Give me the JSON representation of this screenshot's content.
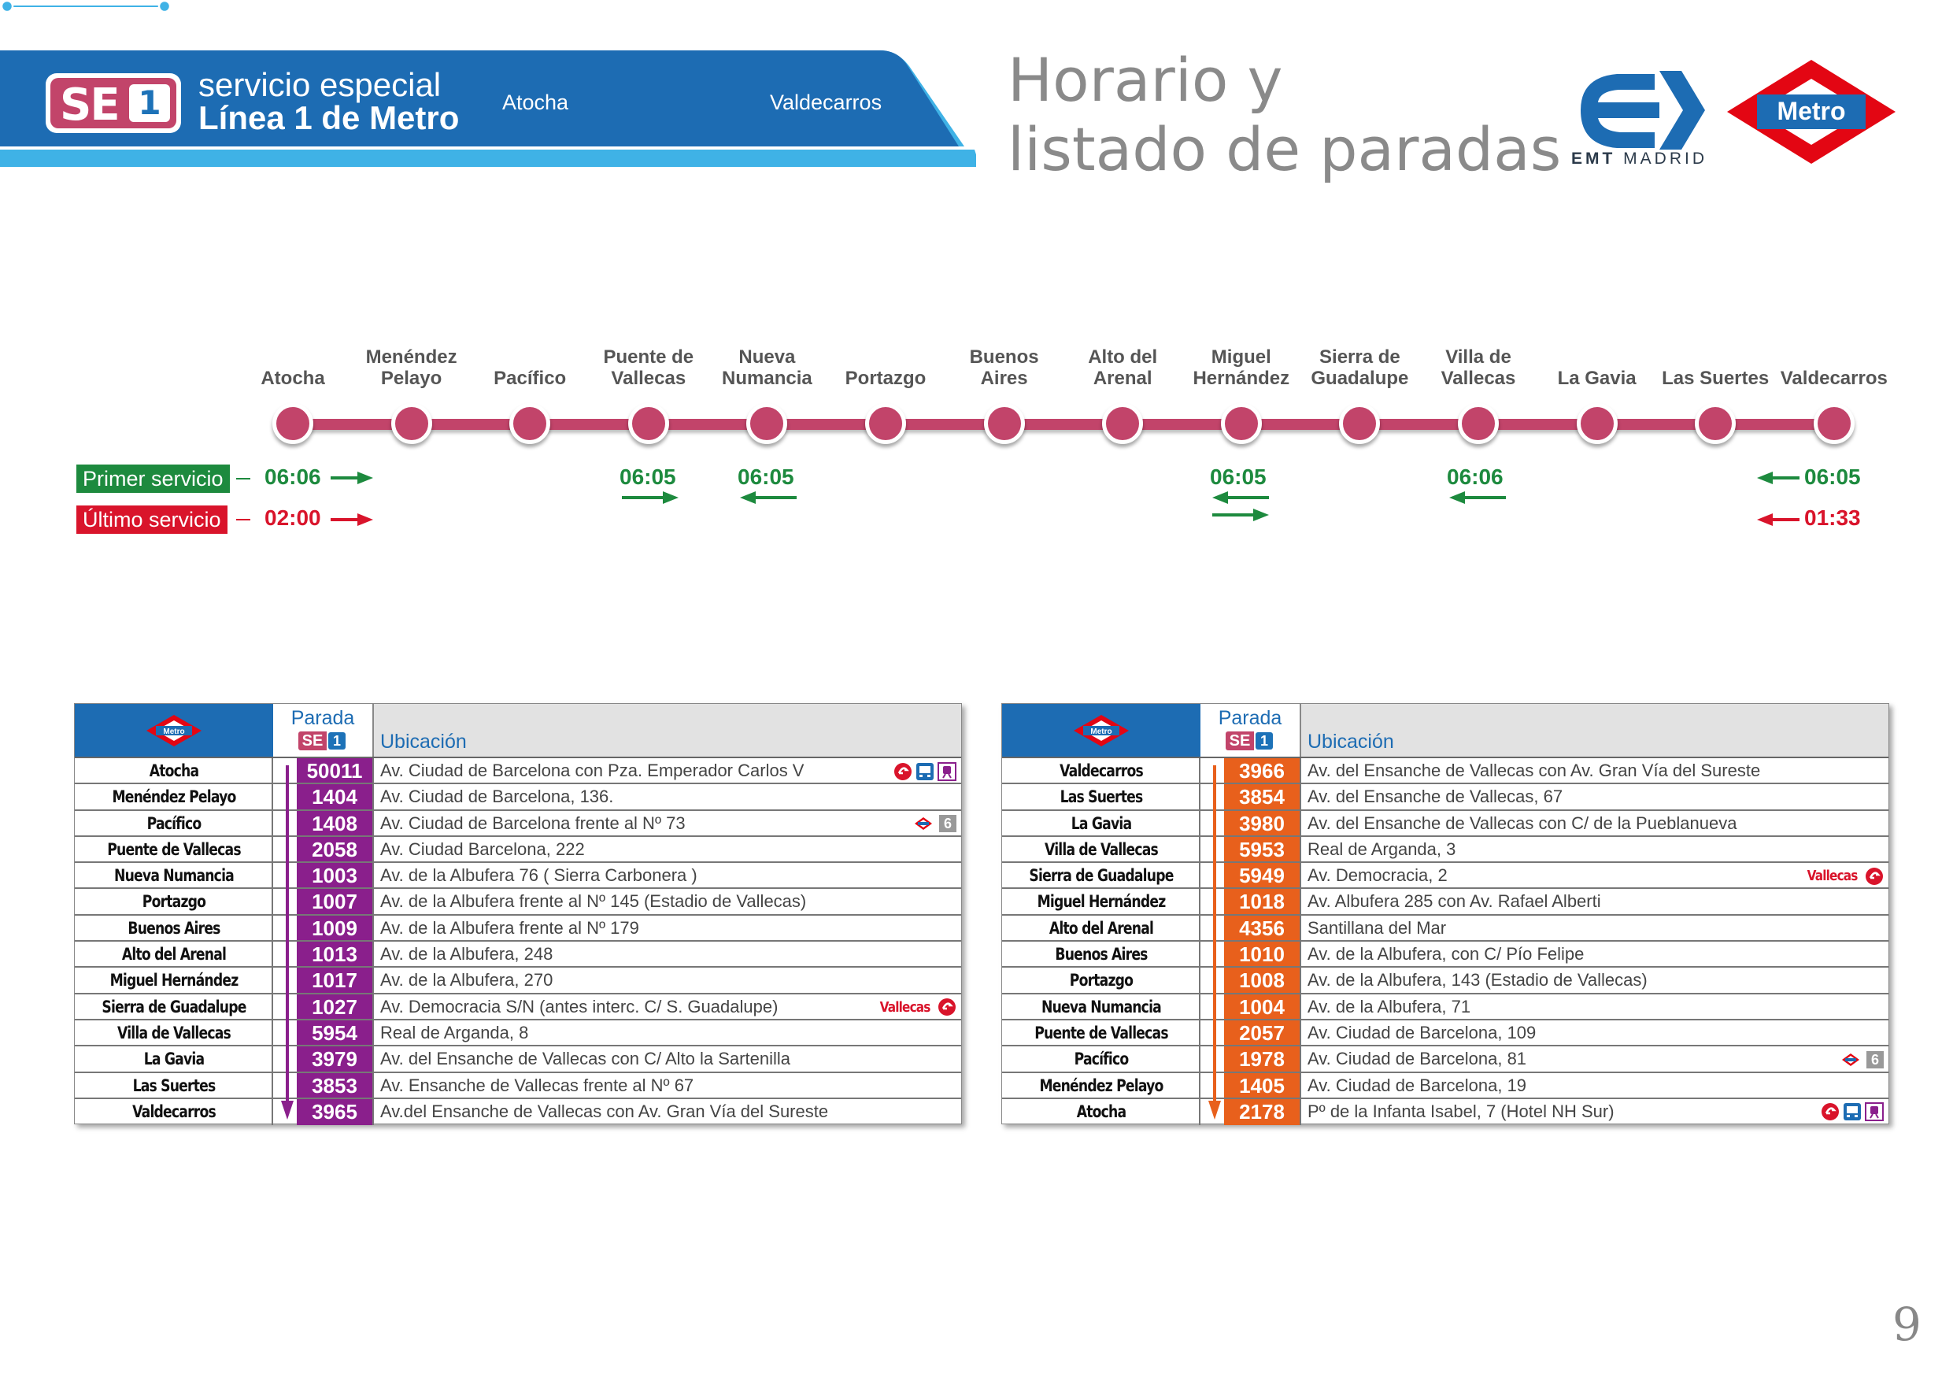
{
  "header": {
    "badge_se": "SE",
    "badge_num": "1",
    "line1": "servicio especial",
    "line2": "Línea 1 de Metro",
    "route_from": "Atocha",
    "route_to": "Valdecarros",
    "title_line1": "Horario y",
    "title_line2": "listado de paradas",
    "emt_bold": "EMT",
    "emt_rest": "MADRID",
    "metro_logo_text": "Metro",
    "colors": {
      "banner_blue": "#1d6cb3",
      "banner_light": "#3fb2e6",
      "line_pink": "#c2446a"
    }
  },
  "diagram": {
    "stops": [
      {
        "l1": "",
        "l2": "Atocha"
      },
      {
        "l1": "Menéndez",
        "l2": "Pelayo"
      },
      {
        "l1": "",
        "l2": "Pacífico"
      },
      {
        "l1": "Puente de",
        "l2": "Vallecas"
      },
      {
        "l1": "Nueva",
        "l2": "Numancia"
      },
      {
        "l1": "",
        "l2": "Portazgo"
      },
      {
        "l1": "Buenos",
        "l2": "Aires"
      },
      {
        "l1": "Alto del",
        "l2": "Arenal"
      },
      {
        "l1": "Miguel",
        "l2": "Hernández"
      },
      {
        "l1": "Sierra de",
        "l2": "Guadalupe"
      },
      {
        "l1": "Villa de",
        "l2": "Vallecas"
      },
      {
        "l1": "",
        "l2": "La Gavia"
      },
      {
        "l1": "",
        "l2": "Las Suertes"
      },
      {
        "l1": "",
        "l2": "Valdecarros"
      }
    ],
    "first_label": "Primer servicio",
    "last_label": "Último servicio",
    "times": {
      "atocha_first": "06:06",
      "atocha_last": "02:00",
      "puente_first": "06:05",
      "nueva_first": "06:05",
      "miguel_first": "06:05",
      "villa_first": "06:06",
      "valdecarros_first": "06:05",
      "valdecarros_last": "01:33"
    },
    "colors": {
      "first": "#1d8a3e",
      "last": "#d9142b"
    }
  },
  "tables": {
    "header_parada": "Parada",
    "header_ubicacion": "Ubicación",
    "mini_se": "SE",
    "mini_num": "1",
    "metro_mini": "Metro",
    "outbound": {
      "code_color": "#8a1f8c",
      "rows": [
        {
          "name": "Atocha",
          "code": "50011",
          "addr": "Av. Ciudad de Barcelona con Pza. Emperador Carlos V"
        },
        {
          "name": "Menéndez Pelayo",
          "code": "1404",
          "addr": "Av. Ciudad de Barcelona, 136."
        },
        {
          "name": "Pacífico",
          "code": "1408",
          "addr": "Av. Ciudad de Barcelona frente al Nº 73",
          "metro_line": "6"
        },
        {
          "name": "Puente de Vallecas",
          "code": "2058",
          "addr": "Av. Ciudad Barcelona, 222"
        },
        {
          "name": "Nueva Numancia",
          "code": "1003",
          "addr": "Av. de la Albufera 76 ( Sierra Carbonera )"
        },
        {
          "name": "Portazgo",
          "code": "1007",
          "addr": "Av. de la Albufera frente al Nº 145 (Estadio de Vallecas)"
        },
        {
          "name": "Buenos Aires",
          "code": "1009",
          "addr": "Av. de la Albufera frente al Nº 179"
        },
        {
          "name": "Alto del Arenal",
          "code": "1013",
          "addr": "Av. de la Albufera, 248"
        },
        {
          "name": "Miguel Hernández",
          "code": "1017",
          "addr": "Av. de la Albufera, 270"
        },
        {
          "name": "Sierra de Guadalupe",
          "code": "1027",
          "addr": "Av. Democracia S/N (antes interc. C/ S. Guadalupe)",
          "cercanias": "Vallecas"
        },
        {
          "name": "Villa de Vallecas",
          "code": "5954",
          "addr": "Real de Arganda, 8"
        },
        {
          "name": "La Gavia",
          "code": "3979",
          "addr": "Av. del Ensanche de Vallecas con C/ Alto la Sartenilla"
        },
        {
          "name": "Las Suertes",
          "code": "3853",
          "addr": "Av. Ensanche de Vallecas frente al Nº 67"
        },
        {
          "name": "Valdecarros",
          "code": "3965",
          "addr": "Av.del Ensanche de Vallecas con Av. Gran Vía del Sureste"
        }
      ]
    },
    "inbound": {
      "code_color": "#e8601c",
      "rows": [
        {
          "name": "Valdecarros",
          "code": "3966",
          "addr": "Av. del Ensanche de Vallecas con Av. Gran Vía del Sureste"
        },
        {
          "name": "Las Suertes",
          "code": "3854",
          "addr": "Av. del Ensanche de Vallecas, 67"
        },
        {
          "name": "La Gavia",
          "code": "3980",
          "addr": "Av. del Ensanche de Vallecas con C/ de la Pueblanueva"
        },
        {
          "name": "Villa de Vallecas",
          "code": "5953",
          "addr": "Real de Arganda, 3"
        },
        {
          "name": "Sierra de Guadalupe",
          "code": "5949",
          "addr": "Av. Democracia, 2",
          "cercanias": "Vallecas"
        },
        {
          "name": "Miguel Hernández",
          "code": "1018",
          "addr": "Av. Albufera 285 con Av. Rafael Alberti"
        },
        {
          "name": "Alto del Arenal",
          "code": "4356",
          "addr": "Santillana del Mar"
        },
        {
          "name": "Buenos Aires",
          "code": "1010",
          "addr": "Av. de la Albufera, con C/ Pío Felipe"
        },
        {
          "name": "Portazgo",
          "code": "1008",
          "addr": "Av. de la Albufera, 143 (Estadio de Vallecas)"
        },
        {
          "name": "Nueva Numancia",
          "code": "1004",
          "addr": "Av. de la Albufera, 71"
        },
        {
          "name": "Puente de Vallecas",
          "code": "2057",
          "addr": "Av. Ciudad de Barcelona, 109"
        },
        {
          "name": "Pacífico",
          "code": "1978",
          "addr": "Av. Ciudad de Barcelona, 81",
          "metro_line": "6"
        },
        {
          "name": "Menéndez Pelayo",
          "code": "1405",
          "addr": "Av. Ciudad de Barcelona, 19"
        },
        {
          "name": "Atocha",
          "code": "2178",
          "addr": "Pº de la Infanta Isabel, 7 (Hotel NH Sur)"
        }
      ]
    }
  },
  "page_number": "9"
}
